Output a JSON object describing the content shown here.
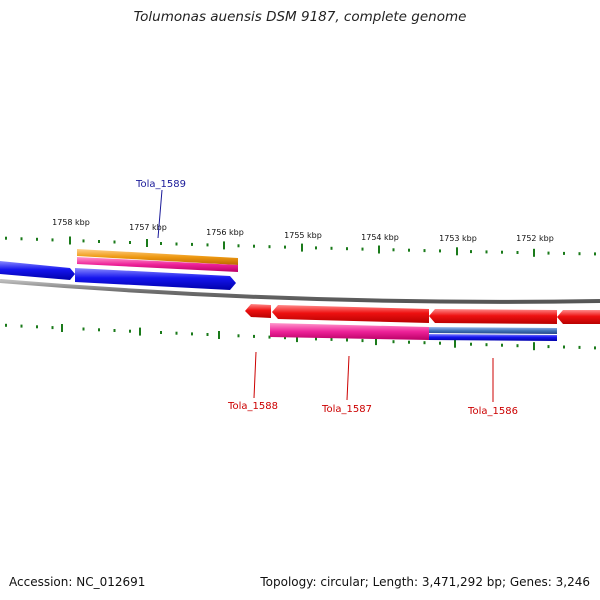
{
  "title": "Tolumonas auensis DSM 9187, complete genome",
  "footer": {
    "accession": "Accession: NC_012691",
    "info": "Topology: circular; Length: 3,471,292 bp; Genes: 3,246"
  },
  "colors": {
    "backbone": "#7f7f7f",
    "tick": "#1a7a1a",
    "upper_label": "#1a1a99",
    "lower_label": "#cc0000",
    "red": "#ee1111",
    "blue": "#1111ee",
    "pink": "#ee2299",
    "orange": "#ee9911",
    "steel": "#4477bb"
  },
  "kbp_labels": [
    "1758 kbp",
    "1757 kbp",
    "1756 kbp",
    "1755 kbp",
    "1754 kbp",
    "1753 kbp",
    "1752 kbp"
  ],
  "gene_labels": {
    "upper": [
      {
        "text": "Tola_1589"
      }
    ],
    "lower": [
      {
        "text": "Tola_1588"
      },
      {
        "text": "Tola_1587"
      },
      {
        "text": "Tola_1586"
      }
    ]
  }
}
